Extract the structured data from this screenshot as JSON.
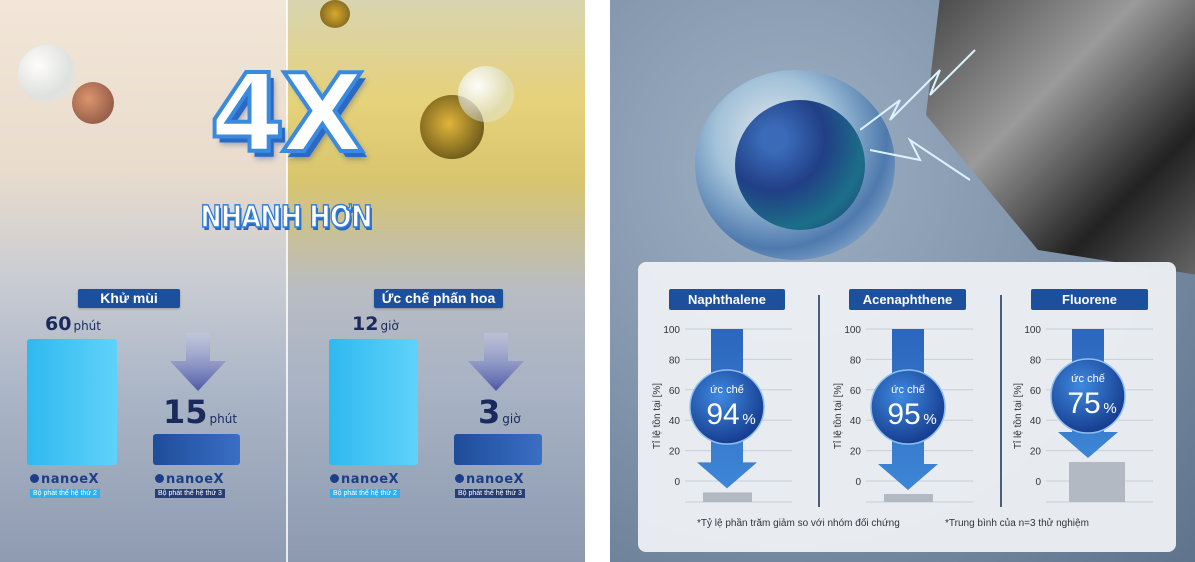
{
  "left": {
    "headline_big": "4X",
    "headline_small": "NHANH HƠN",
    "panels": [
      {
        "title": "Khử mùi",
        "unit": "phút",
        "before": {
          "value": 60,
          "unit": "phút",
          "brand": "nanoeX",
          "label": "Bộ phát thế hệ thứ 2"
        },
        "after": {
          "value": 15,
          "unit": "phút",
          "brand": "nanoeX",
          "label": "Bộ phát thế hệ thứ 3"
        }
      },
      {
        "title": "Ức chế phấn hoa",
        "unit": "giờ",
        "before": {
          "value": 12,
          "unit": "giờ",
          "brand": "nanoeX",
          "label": "Bộ phát thế hệ thứ 2"
        },
        "after": {
          "value": 3,
          "unit": "giờ",
          "brand": "nanoeX",
          "label": "Bộ phát thế hệ thứ 3"
        }
      }
    ]
  },
  "chart_data": [
    {
      "type": "bar",
      "title": "Khử mùi",
      "categories": [
        "Bộ phát thế hệ thứ 2",
        "Bộ phát thế hệ thứ 3"
      ],
      "values": [
        60,
        15
      ],
      "unit": "phút"
    },
    {
      "type": "bar",
      "title": "Ức chế phấn hoa",
      "categories": [
        "Bộ phát thế hệ thứ 2",
        "Bộ phát thế hệ thứ 3"
      ],
      "values": [
        12,
        3
      ],
      "unit": "giờ"
    },
    {
      "type": "bar",
      "title": "Naphthalene",
      "ylabel": "Tỉ lệ tồn tại [%]",
      "yticks": [
        100,
        80,
        60,
        40,
        20,
        0
      ],
      "ylim": [
        0,
        100
      ],
      "inhibition_label": "ức chế",
      "inhibition": 94,
      "inhibition_text": "94",
      "percent_sign": "%"
    },
    {
      "type": "bar",
      "title": "Acenaphthene",
      "ylabel": "Tỉ lệ tồn tại [%]",
      "yticks": [
        100,
        80,
        60,
        40,
        20,
        0
      ],
      "ylim": [
        0,
        100
      ],
      "inhibition_label": "ức chế",
      "inhibition": 95,
      "inhibition_text": "95",
      "percent_sign": "%"
    },
    {
      "type": "bar",
      "title": "Fluorene",
      "ylabel": "Tỉ lệ tồn tại [%]",
      "yticks": [
        100,
        80,
        60,
        40,
        20,
        0
      ],
      "ylim": [
        0,
        100
      ],
      "inhibition_label": "ức chế",
      "inhibition": 75,
      "inhibition_text": "75",
      "percent_sign": "%"
    }
  ],
  "notes": [
    "*Tỷ lệ phần trăm giảm so với nhóm đối chứng",
    "*Trung bình của n=3 thử nghiệm"
  ],
  "colors": {
    "tag": "#1c4f9c",
    "light_bar": "#3ec3f2",
    "dark_bar": "#2a5cae",
    "residual_bar": "#b3b9c3",
    "arrow": "#2f74c9"
  }
}
